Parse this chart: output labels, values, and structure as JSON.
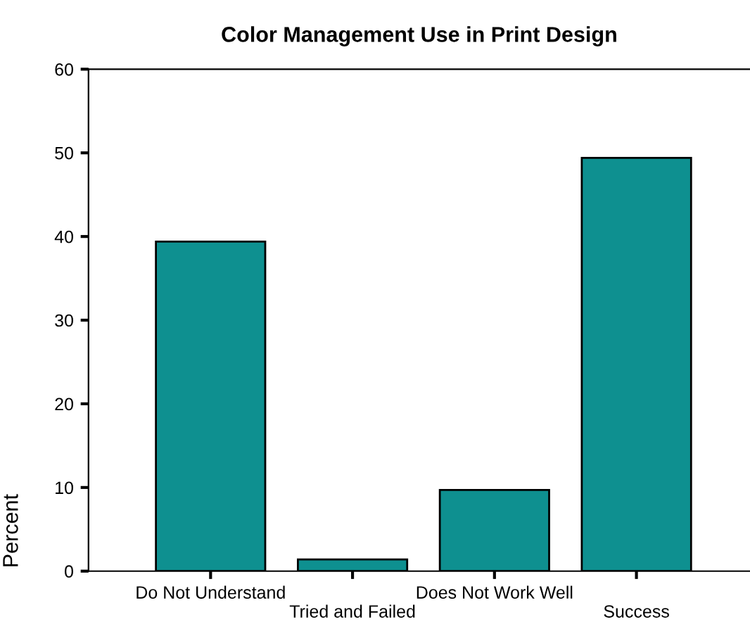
{
  "chart_data": {
    "type": "bar",
    "title": "Color Management Use in Print Design",
    "ylabel": "Percent",
    "categories": [
      "Do Not Understand",
      "Tried and Failed",
      "Does Not Work Well",
      "Success"
    ],
    "values": [
      39.4,
      1.4,
      9.7,
      49.4
    ],
    "color": "#0e9090",
    "ylim": [
      0,
      60
    ],
    "yticks": [
      0,
      10,
      20,
      30,
      40,
      50,
      60
    ],
    "grid": false,
    "legend": false
  }
}
